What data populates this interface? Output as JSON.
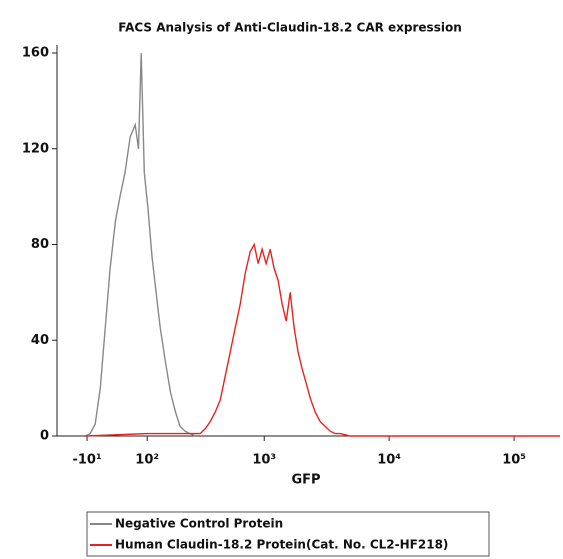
{
  "chart_data": {
    "type": "line",
    "title": "FACS Analysis of Anti-Claudin-18.2 CAR expression",
    "x_label": "GFP",
    "xscale": "biexponential",
    "xlim": [
      -62,
      233000
    ],
    "ylim": [
      0,
      160
    ],
    "xticks": [
      {
        "value": -10,
        "label": "-10¹"
      },
      {
        "value": 100,
        "label": "10²"
      },
      {
        "value": 1000,
        "label": "10³"
      },
      {
        "value": 10000,
        "label": "10⁴"
      },
      {
        "value": 100000,
        "label": "10⁵"
      }
    ],
    "yticks": [
      0,
      40,
      80,
      120,
      160
    ],
    "series": [
      {
        "name": "Negative Control Protein",
        "color": "#888888",
        "x": [
          -13,
          -5,
          3,
          11,
          19,
          27,
          36,
          44,
          53,
          63,
          73,
          80,
          86,
          93,
          102,
          112,
          123,
          135,
          152,
          168,
          186,
          204,
          225,
          248,
          274
        ],
        "values": [
          0,
          1,
          5,
          20,
          45,
          70,
          90,
          100,
          110,
          125,
          130,
          120,
          160,
          110,
          95,
          75,
          60,
          45,
          30,
          18,
          10,
          4,
          2,
          1,
          0
        ]
      },
      {
        "name": "Human Claudin-18.2 Protein(Cat. No. CL2-HF218)",
        "color": "#e8231f",
        "x": [
          -13,
          100,
          302,
          332,
          365,
          401,
          441,
          484,
          532,
          583,
          640,
          703,
          771,
          830,
          894,
          962,
          1036,
          1116,
          1201,
          1293,
          1393,
          1499,
          1614,
          1738,
          1870,
          2014,
          2168,
          2333,
          2560,
          2807,
          3078,
          3375,
          3701,
          4059,
          4876,
          12250,
          233000
        ],
        "values": [
          0,
          1,
          1,
          3,
          6,
          10,
          15,
          25,
          35,
          45,
          55,
          68,
          77,
          80,
          72,
          78,
          72,
          78,
          70,
          65,
          55,
          48,
          60,
          45,
          35,
          28,
          22,
          16,
          10,
          6,
          4,
          2,
          1,
          1,
          0,
          0,
          0
        ]
      }
    ]
  }
}
